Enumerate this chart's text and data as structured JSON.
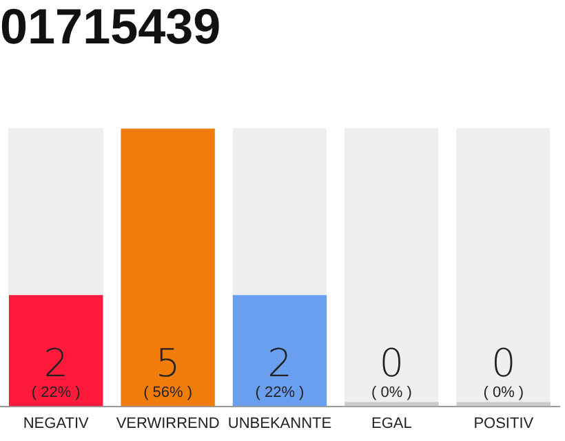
{
  "chart_data": {
    "type": "bar",
    "title": "01715439",
    "categories": [
      "NEGATIV",
      "VERWIRREND",
      "UNBEKANNTE",
      "EGAL",
      "POSITIV"
    ],
    "values": [
      2,
      5,
      2,
      0,
      0
    ],
    "colors": [
      "#ff1a3c",
      "#f07d0a",
      "#6a9ff0",
      "#cccccc",
      "#cccccc"
    ],
    "value_labels": [
      "2",
      "5",
      "2",
      "0",
      "0"
    ],
    "ylim": [
      0,
      5
    ],
    "tick_labels": "x",
    "grid": false,
    "legend": false,
    "annotations": [
      {
        "text": "( 22% )",
        "x": "NEGATIV",
        "y": 0
      },
      {
        "text": "( 56% )",
        "x": "VERWIRREND",
        "y": 0
      },
      {
        "text": "( 22% )",
        "x": "UNBEKANNTE",
        "y": 0
      },
      {
        "text": "( 0% )",
        "x": "EGAL",
        "y": 0
      },
      {
        "text": "( 0% )",
        "x": "POSITIV",
        "y": 0
      }
    ]
  }
}
